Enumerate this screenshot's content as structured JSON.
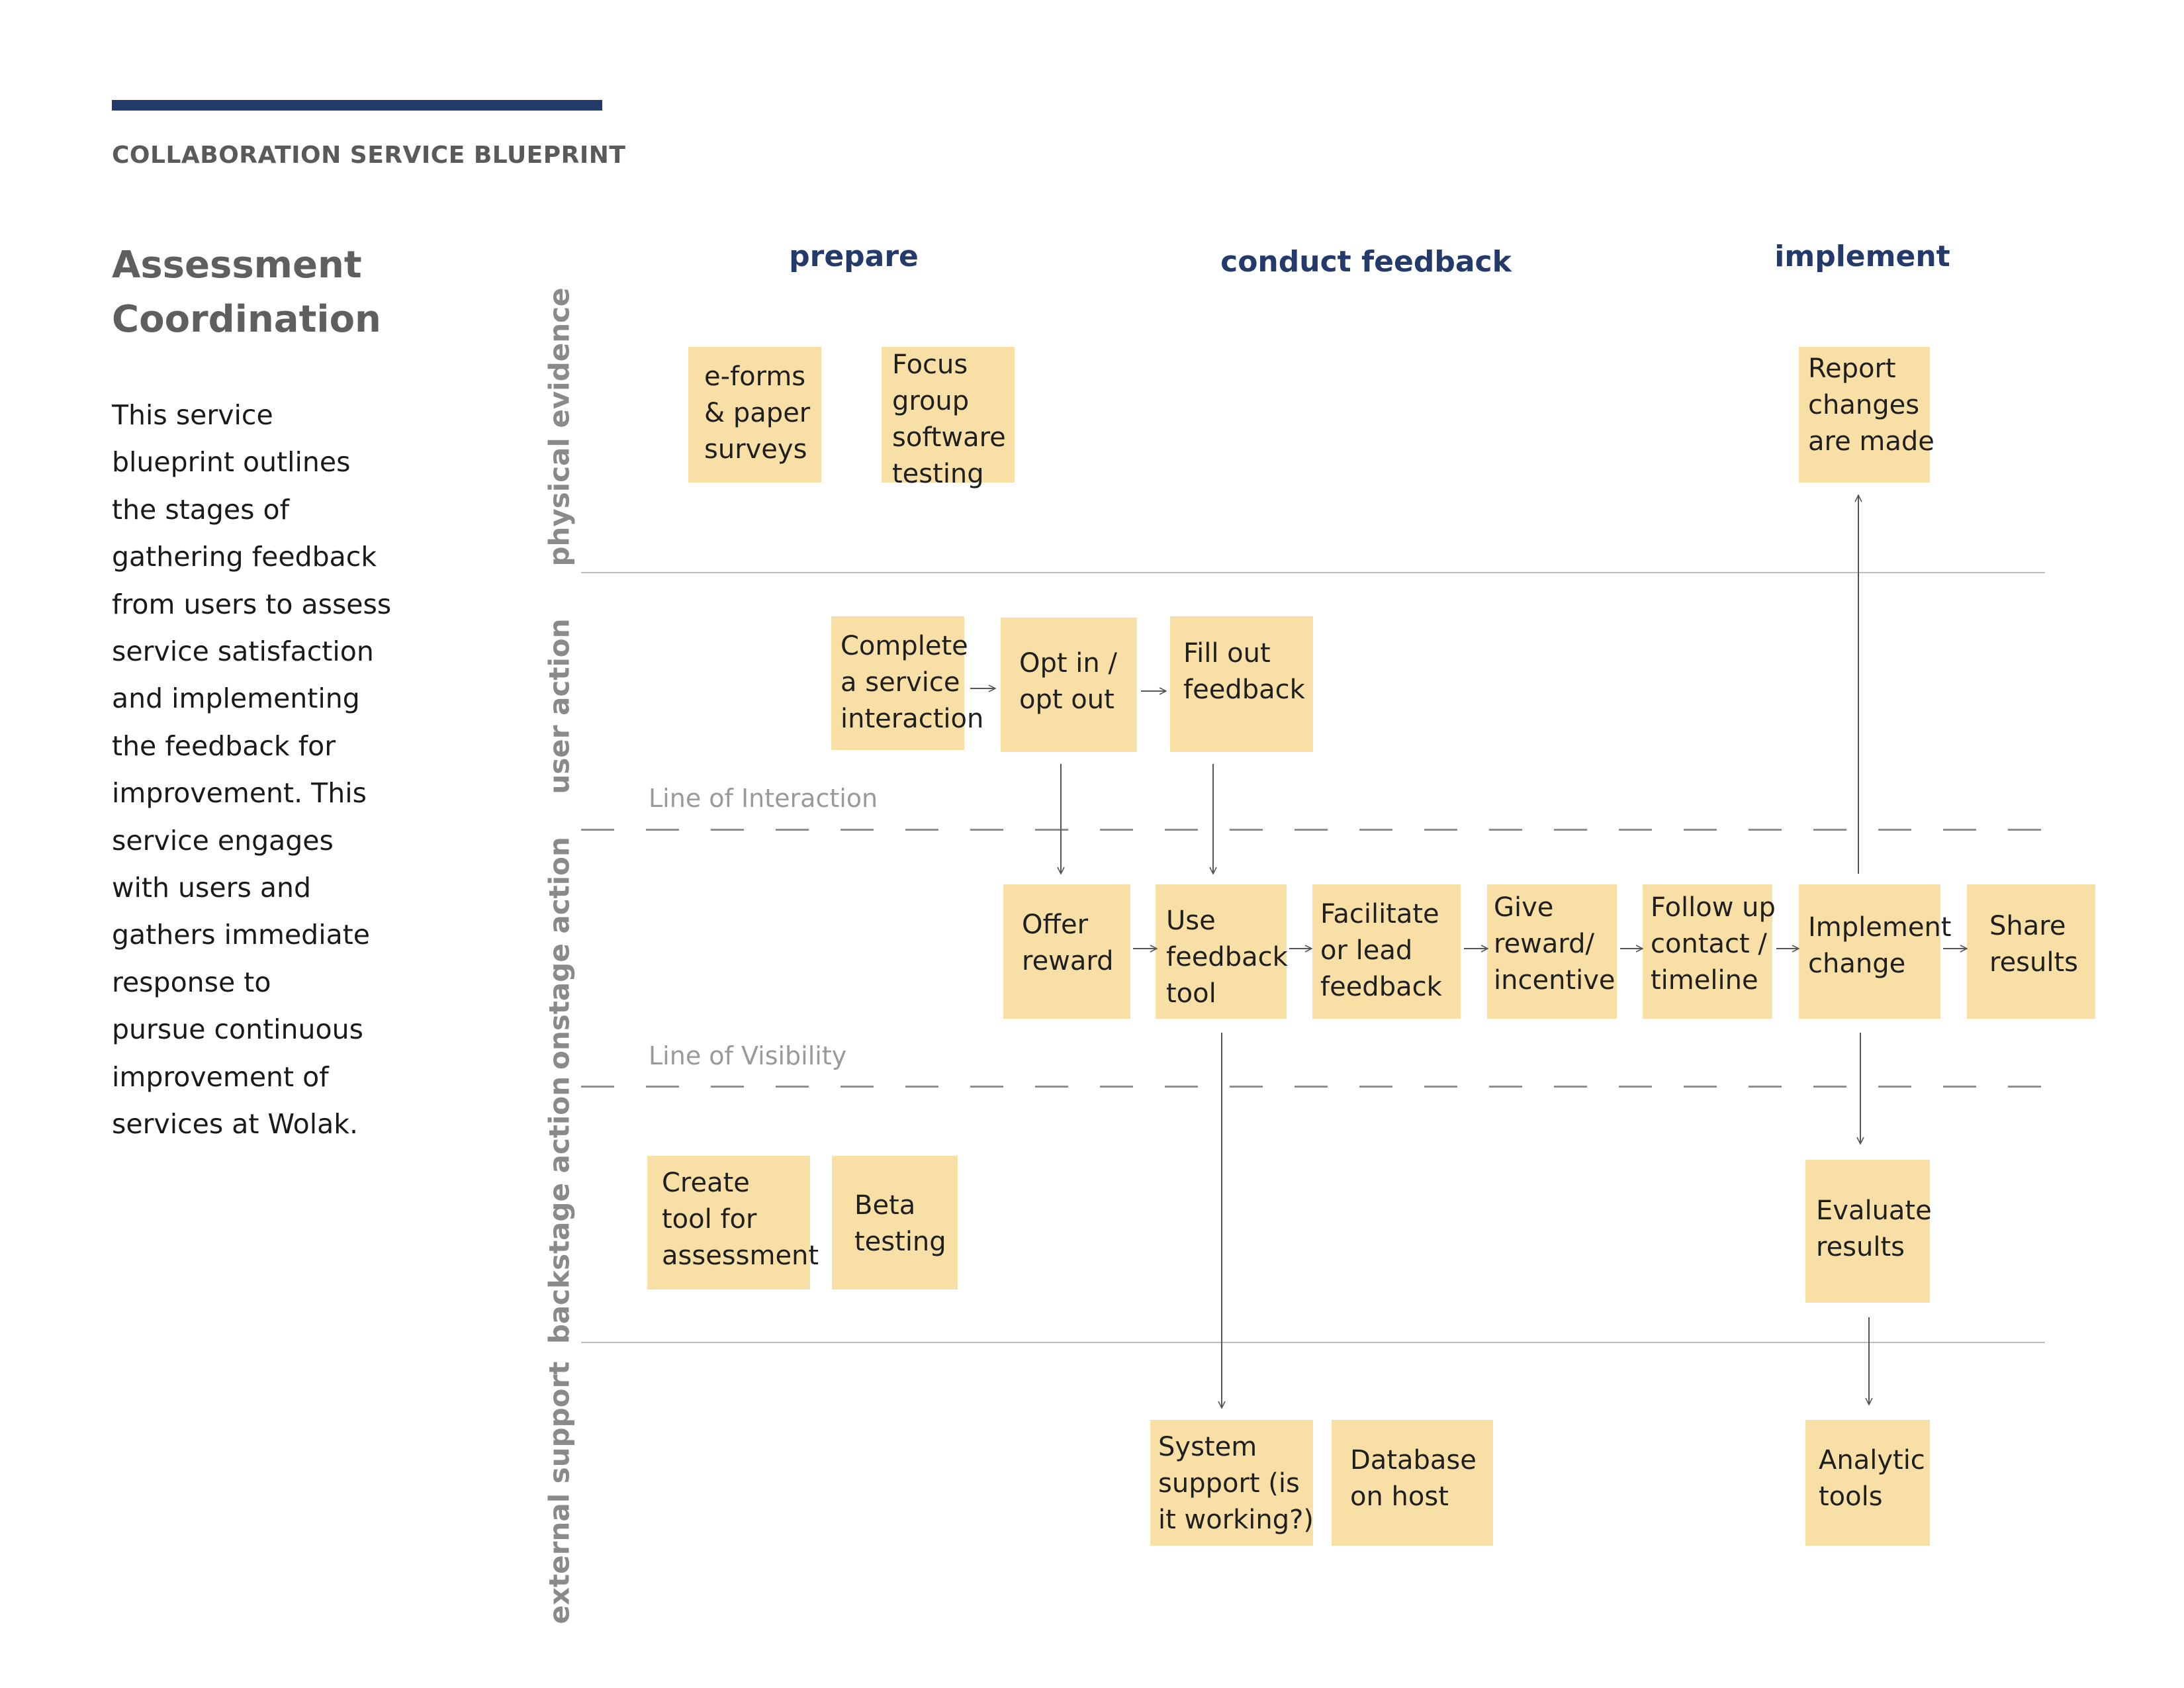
{
  "header": {
    "kicker": "COLLABORATION SERVICE BLUEPRINT"
  },
  "title": {
    "line1": "Assessment",
    "line2": "Coordination"
  },
  "description": {
    "lines": [
      "This service",
      "blueprint outlines",
      "the stages of",
      "gathering feedback",
      "from users to assess",
      "service satisfaction",
      "and implementing",
      "the feedback for",
      "improvement. This",
      "service engages",
      "with users and",
      "gathers immediate",
      "response to",
      "pursue continuous",
      "improvement of",
      "services at Wolak."
    ]
  },
  "phases": {
    "prepare": "prepare",
    "conduct": "conduct feedback",
    "implement": "implement"
  },
  "lanes": {
    "physical_evidence": "physical evidence",
    "user_action": "user action",
    "onstage_action": "onstage action",
    "backstage_action": "backstage action",
    "external_support": "external support"
  },
  "lines": {
    "interaction": "Line of Interaction",
    "visibility": "Line of Visibility"
  },
  "notes": {
    "eforms": [
      "e-forms",
      "& paper",
      "surveys"
    ],
    "focus": [
      "Focus",
      "group",
      "software",
      "testing"
    ],
    "report": [
      "Report",
      "changes",
      "are made"
    ],
    "complete": [
      "Complete",
      "a service",
      "interaction"
    ],
    "optin": [
      "Opt in /",
      "opt out"
    ],
    "fillout": [
      "Fill out",
      "feedback"
    ],
    "offer": [
      "Offer",
      "reward"
    ],
    "usetool": [
      "Use",
      "feedback",
      "tool"
    ],
    "facilitate": [
      "Facilitate",
      "or lead",
      "feedback"
    ],
    "give": [
      "Give",
      "reward/",
      "incentive"
    ],
    "follow": [
      "Follow up",
      "contact /",
      "timeline"
    ],
    "implement": [
      "Implement",
      "change"
    ],
    "share": [
      "Share",
      "results"
    ],
    "create": [
      "Create",
      "tool for",
      "assessment"
    ],
    "beta": [
      "Beta",
      "testing"
    ],
    "evaluate": [
      "Evaluate",
      "results"
    ],
    "system": [
      "System",
      "support (is",
      "it working?)"
    ],
    "database": [
      "Database",
      "on host"
    ],
    "analytic": [
      "Analytic",
      "tools"
    ]
  },
  "colors": {
    "note": "#f8dfa6",
    "accent": "#243a6b",
    "lane_label": "#8a8a8a",
    "line": "#8f8f8f"
  }
}
